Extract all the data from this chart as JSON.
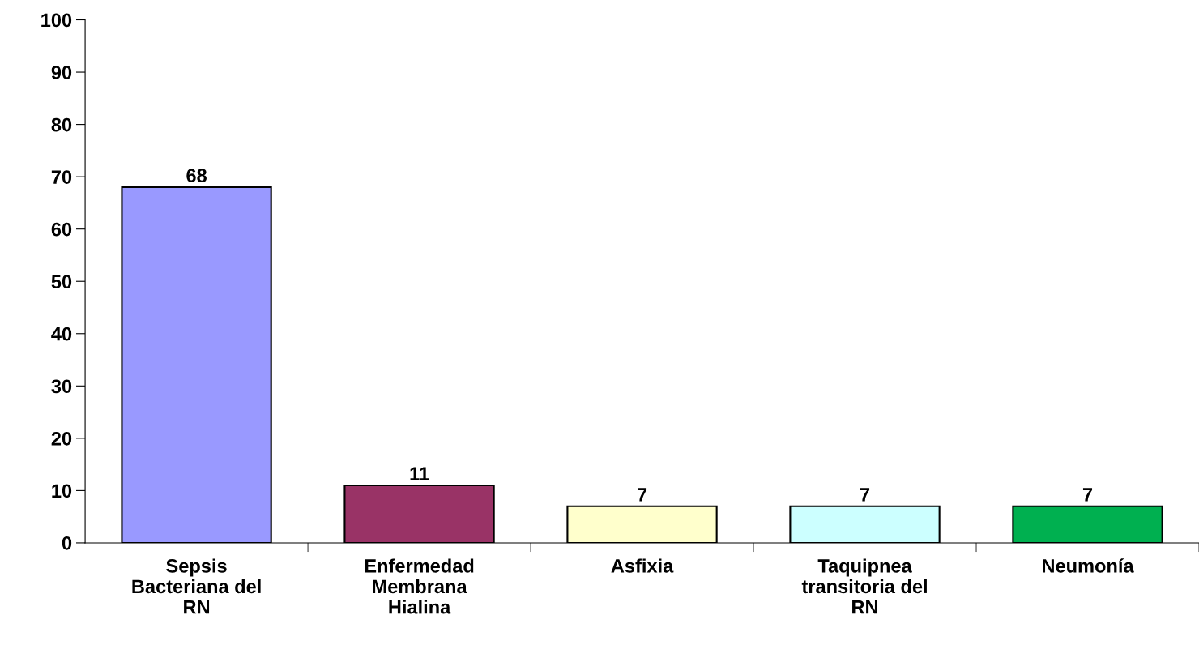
{
  "chart_data": {
    "type": "bar",
    "categories": [
      "Sepsis\nBacteriana del\nRN",
      "Enfermedad\nMembrana\nHialina",
      "Asfixia",
      "Taquipnea\ntransitoria del\nRN",
      "Neumonía"
    ],
    "values": [
      68,
      11,
      7,
      7,
      7
    ],
    "colors": [
      "#9999ff",
      "#993366",
      "#ffffcc",
      "#ccffff",
      "#00b050"
    ],
    "ylim": [
      0,
      100
    ],
    "yticks": [
      0,
      10,
      20,
      30,
      40,
      50,
      60,
      70,
      80,
      90,
      100
    ],
    "data_labels": true,
    "grid": false,
    "legend": false
  }
}
